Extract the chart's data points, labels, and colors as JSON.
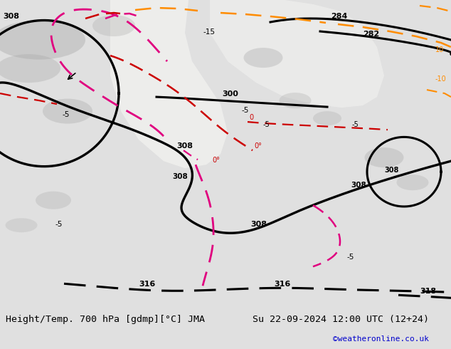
{
  "title_left": "Height/Temp. 700 hPa [gdmp][°C] JMA",
  "title_right": "Su 22-09-2024 12:00 UTC (12+24)",
  "credit": "©weatheronline.co.uk",
  "bg_color": "#e0e0e0",
  "map_bg_green": "#b8d8b0",
  "figsize": [
    6.34,
    4.9
  ],
  "dpi": 100
}
